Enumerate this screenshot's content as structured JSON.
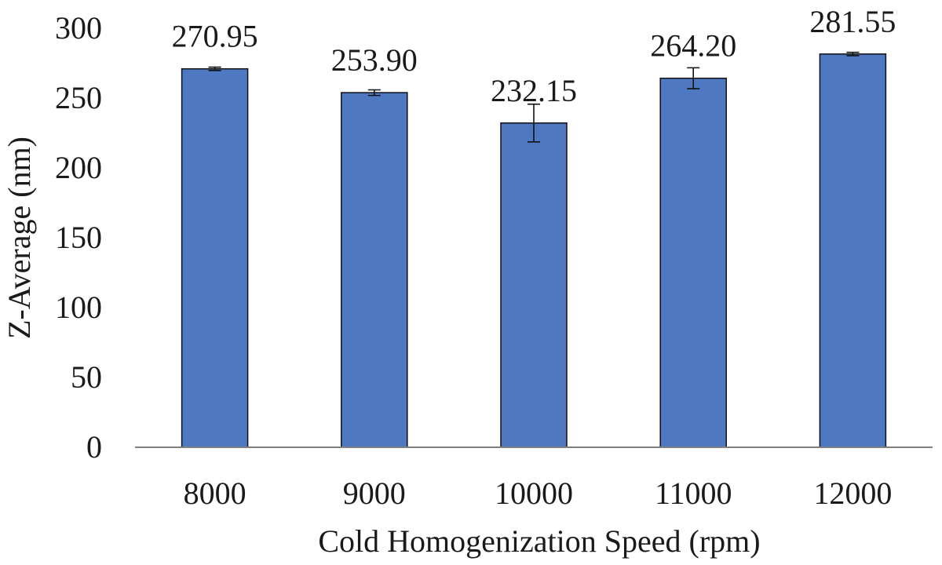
{
  "chart_data": {
    "type": "bar",
    "title": "",
    "xlabel": "Cold Homogenization Speed (rpm)",
    "ylabel": "Z-Average (nm)",
    "categories": [
      "8000",
      "9000",
      "10000",
      "11000",
      "12000"
    ],
    "values": [
      270.95,
      253.9,
      232.15,
      264.2,
      281.55
    ],
    "value_labels": [
      "270.95",
      "253.90",
      "232.15",
      "264.20",
      "281.55"
    ],
    "error": [
      1.2,
      2.0,
      13.5,
      7.5,
      1.2
    ],
    "ylim": [
      0,
      300
    ],
    "yticks": [
      0,
      50,
      100,
      150,
      200,
      250,
      300
    ],
    "ytick_labels": [
      "0",
      "50",
      "100",
      "150",
      "200",
      "250",
      "300"
    ],
    "grid": false,
    "legend": "none",
    "colors": {
      "bar_fill": "#4f78c2",
      "bar_stroke": "#111111",
      "axis": "#7f7f7f",
      "text": "#1a1a1a"
    }
  }
}
